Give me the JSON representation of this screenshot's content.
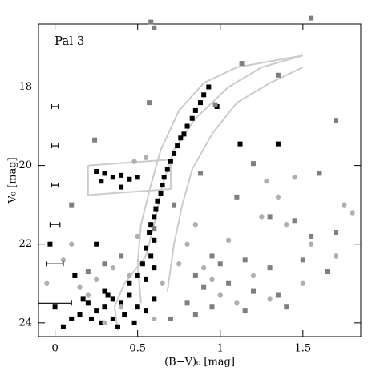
{
  "chart_data": {
    "type": "scatter",
    "title": "Pal 3",
    "x_label": "(B−V)₀ [mag]",
    "y_label": "V₀ [mag]",
    "xlim": [
      -0.1,
      1.85
    ],
    "ylim": [
      16.4,
      24.35
    ],
    "y_inverted": true,
    "xticks": [
      0,
      0.5,
      1,
      1.5
    ],
    "yticks": [
      18,
      20,
      22,
      24
    ],
    "series": [
      {
        "marker": "square",
        "color": "#000000",
        "x": [
          0.93,
          0.9,
          0.88,
          0.85,
          0.83,
          0.8,
          0.78,
          0.76,
          0.74,
          0.72,
          0.7,
          0.68,
          0.66,
          0.65,
          0.64,
          0.62,
          0.61,
          0.6,
          0.58,
          0.57,
          0.6,
          0.55,
          0.58,
          0.53,
          0.6,
          0.5,
          0.55,
          0.45,
          0.25,
          0.3,
          0.35,
          0.4,
          0.45,
          0.5,
          0.4,
          0.28,
          0.3,
          0.35,
          0.4,
          0.3,
          0.25,
          0.42,
          0.35,
          0.28,
          0.45,
          0.5,
          0.2,
          0.15,
          0.38,
          0.32,
          0.22,
          0.48,
          0.55,
          0.6,
          0.1,
          0.05,
          0.0,
          -0.03,
          0.12,
          0.25,
          1.35,
          1.12,
          0.98,
          0.17
        ],
        "y": [
          18.0,
          18.2,
          18.4,
          18.6,
          18.8,
          19.0,
          19.2,
          19.3,
          19.5,
          19.7,
          19.9,
          20.1,
          20.3,
          20.5,
          20.7,
          20.9,
          21.1,
          21.3,
          21.5,
          21.7,
          21.9,
          22.1,
          22.3,
          22.5,
          22.6,
          22.8,
          22.9,
          23.0,
          20.15,
          20.2,
          20.3,
          20.25,
          20.35,
          20.3,
          20.55,
          20.4,
          23.2,
          23.4,
          23.5,
          23.6,
          23.7,
          23.8,
          23.9,
          24.0,
          23.3,
          23.6,
          23.5,
          23.8,
          24.1,
          23.3,
          23.9,
          24.0,
          23.7,
          23.4,
          23.9,
          24.1,
          23.6,
          22.0,
          22.8,
          22.0,
          19.45,
          19.45,
          18.5,
          23.4
        ]
      },
      {
        "marker": "square",
        "color": "#7f7f7f",
        "x": [
          0.58,
          0.6,
          1.55,
          1.13,
          1.35,
          0.57,
          0.97,
          0.24,
          1.7,
          1.2,
          0.88,
          1.6,
          0.1,
          0.6,
          1.1,
          1.3,
          1.45,
          1.55,
          1.7,
          0.95,
          1.0,
          1.15,
          1.3,
          1.5,
          1.65,
          0.85,
          0.9,
          1.05,
          1.2,
          1.35,
          0.8,
          0.95,
          0.7,
          0.85,
          1.15,
          0.3,
          0.2,
          0.4,
          0.72,
          1.4
        ],
        "y": [
          16.35,
          16.5,
          16.25,
          17.4,
          17.7,
          18.4,
          18.45,
          19.35,
          18.85,
          19.95,
          20.2,
          20.2,
          21.0,
          21.6,
          20.8,
          21.3,
          21.4,
          21.8,
          21.7,
          22.3,
          22.5,
          22.4,
          22.6,
          22.4,
          22.7,
          22.8,
          23.1,
          23.0,
          23.2,
          23.3,
          23.5,
          23.6,
          23.9,
          23.8,
          23.7,
          22.5,
          22.7,
          22.3,
          21.0,
          23.6
        ]
      },
      {
        "marker": "circle",
        "color": "#b0b0b0",
        "x": [
          0.55,
          0.48,
          0.35,
          0.25,
          0.15,
          0.45,
          0.05,
          -0.05,
          0.3,
          0.6,
          0.75,
          0.8,
          0.9,
          1.05,
          1.25,
          1.35,
          1.4,
          1.55,
          1.7,
          1.75,
          1.8,
          1.5,
          1.3,
          1.1,
          0.95,
          1.2,
          0.85,
          1.28,
          1.45,
          0.65,
          0.4,
          0.2,
          0.1,
          0.5,
          1.0
        ],
        "y": [
          19.8,
          19.9,
          22.6,
          22.9,
          23.1,
          22.8,
          22.4,
          23.0,
          24.0,
          23.9,
          22.5,
          22.0,
          22.6,
          21.9,
          21.3,
          20.8,
          21.5,
          22.0,
          22.3,
          21.0,
          21.2,
          23.0,
          23.4,
          23.5,
          22.9,
          22.8,
          21.5,
          20.4,
          20.3,
          23.0,
          23.6,
          23.3,
          22.0,
          21.8,
          23.3
        ]
      }
    ],
    "error_bars": {
      "x": [
        0,
        0,
        0,
        0,
        0,
        0
      ],
      "y": [
        18.5,
        19.5,
        20.5,
        21.5,
        22.5,
        23.5
      ],
      "xerr": [
        0.02,
        0.02,
        0.02,
        0.03,
        0.05,
        0.1
      ]
    },
    "lines": [
      {
        "color": "#cccccc",
        "x": [
          0.38,
          0.36,
          0.42,
          0.55,
          0.6,
          0.65,
          0.72,
          0.85,
          1.05,
          1.25,
          1.5
        ],
        "y": [
          24.2,
          23.6,
          23.0,
          22.3,
          21.5,
          20.5,
          19.6,
          18.8,
          18.0,
          17.5,
          17.2
        ]
      },
      {
        "color": "#cccccc",
        "x": [
          0.52,
          0.5,
          0.52,
          0.58,
          0.64,
          0.75,
          0.9,
          1.1,
          1.5
        ],
        "y": [
          23.5,
          22.5,
          21.5,
          20.5,
          19.6,
          18.6,
          17.9,
          17.5,
          17.2
        ]
      },
      {
        "color": "#cccccc",
        "x": [
          0.68,
          0.72,
          0.77,
          0.83,
          0.95,
          1.1,
          1.3,
          1.5
        ],
        "y": [
          23.2,
          22.0,
          21.0,
          20.1,
          19.2,
          18.4,
          17.9,
          17.5
        ]
      },
      {
        "color": "#cccccc",
        "x": [
          0.2,
          0.7,
          0.7,
          0.2,
          0.2
        ],
        "y": [
          20.0,
          19.85,
          20.6,
          20.75,
          20.0
        ]
      }
    ]
  }
}
